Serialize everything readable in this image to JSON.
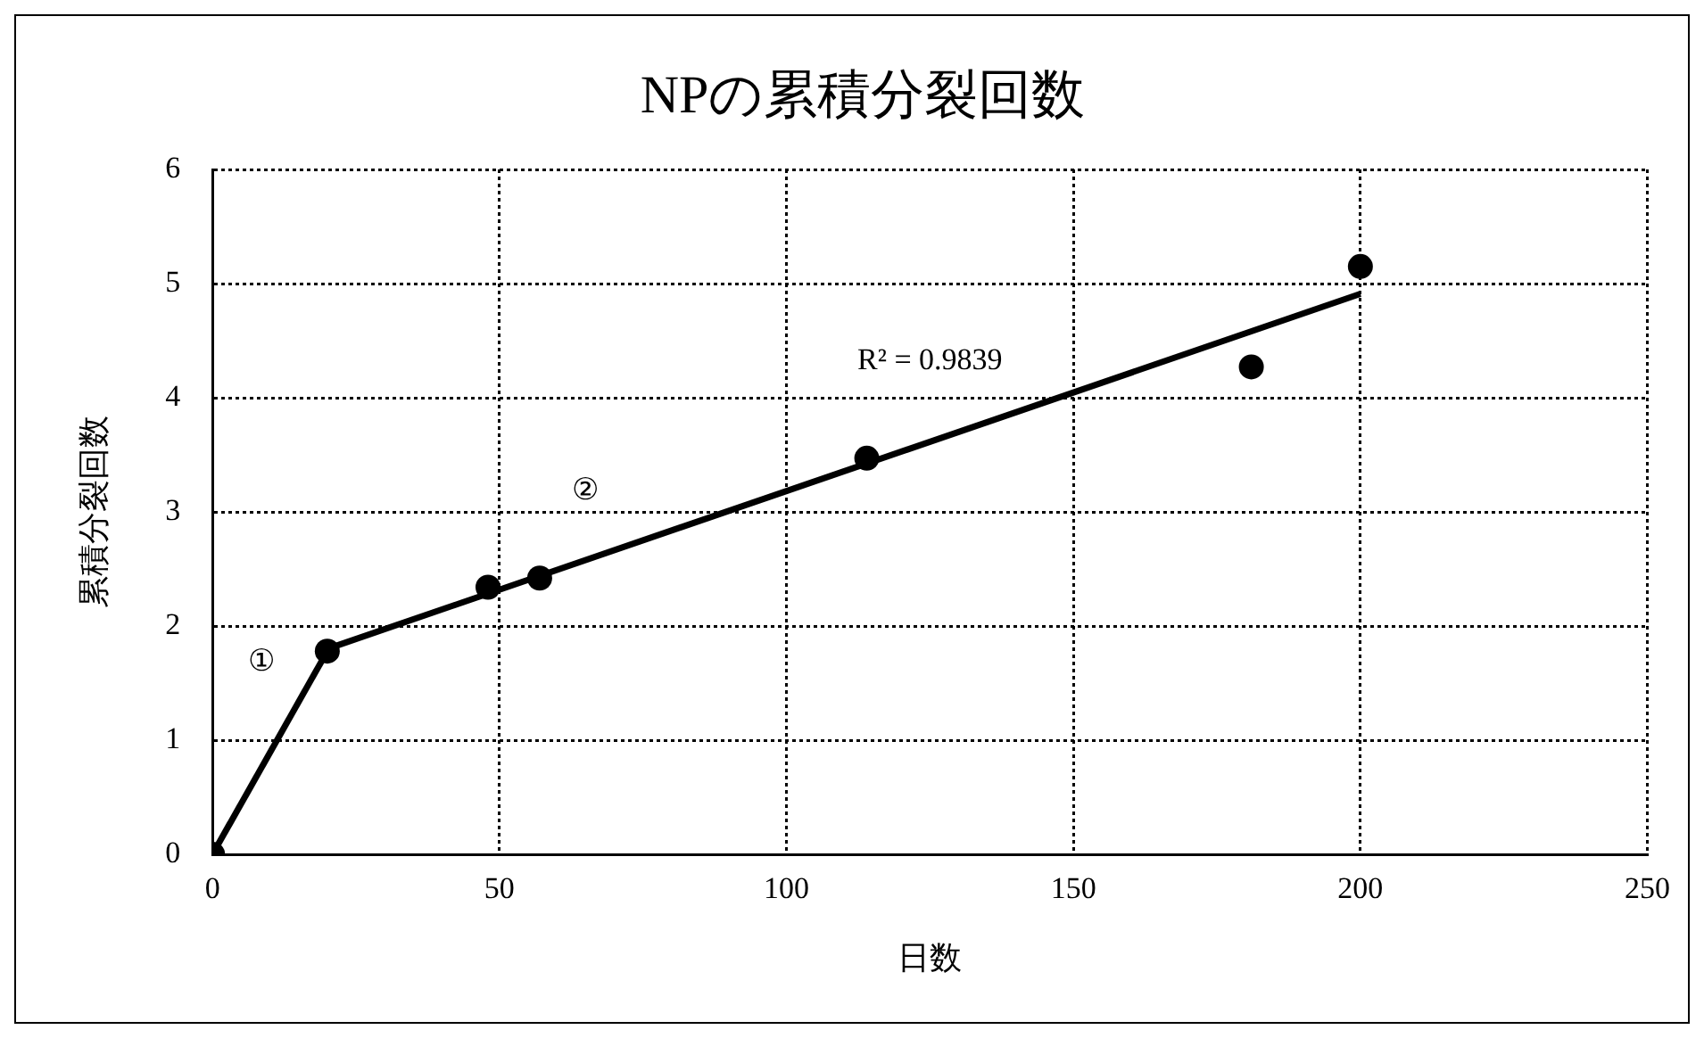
{
  "chart_data": {
    "type": "scatter",
    "title": "NPの累積分裂回数",
    "xlabel": "日数",
    "ylabel": "累積分裂回数",
    "xlim": [
      0,
      250
    ],
    "xticks": [
      0,
      50,
      100,
      150,
      200,
      250
    ],
    "ylim": [
      0,
      6
    ],
    "yticks": [
      0,
      1,
      2,
      3,
      4,
      5,
      6
    ],
    "grid": true,
    "series": [
      {
        "type": "scatter",
        "color": "#000000",
        "marker": "circle",
        "x": [
          0,
          20,
          48,
          57,
          114,
          181,
          200
        ],
        "values": [
          0,
          1.78,
          2.34,
          2.42,
          3.47,
          4.27,
          5.15
        ]
      },
      {
        "type": "line",
        "color": "#000000",
        "marker": "none",
        "x": [
          0,
          20
        ],
        "values": [
          0,
          1.78
        ]
      },
      {
        "type": "line",
        "color": "#000000",
        "marker": "none",
        "x": [
          20,
          200
        ],
        "values": [
          1.8,
          4.91
        ]
      }
    ],
    "annotations": [
      "①",
      "②",
      "R² = 0.9839"
    ]
  }
}
